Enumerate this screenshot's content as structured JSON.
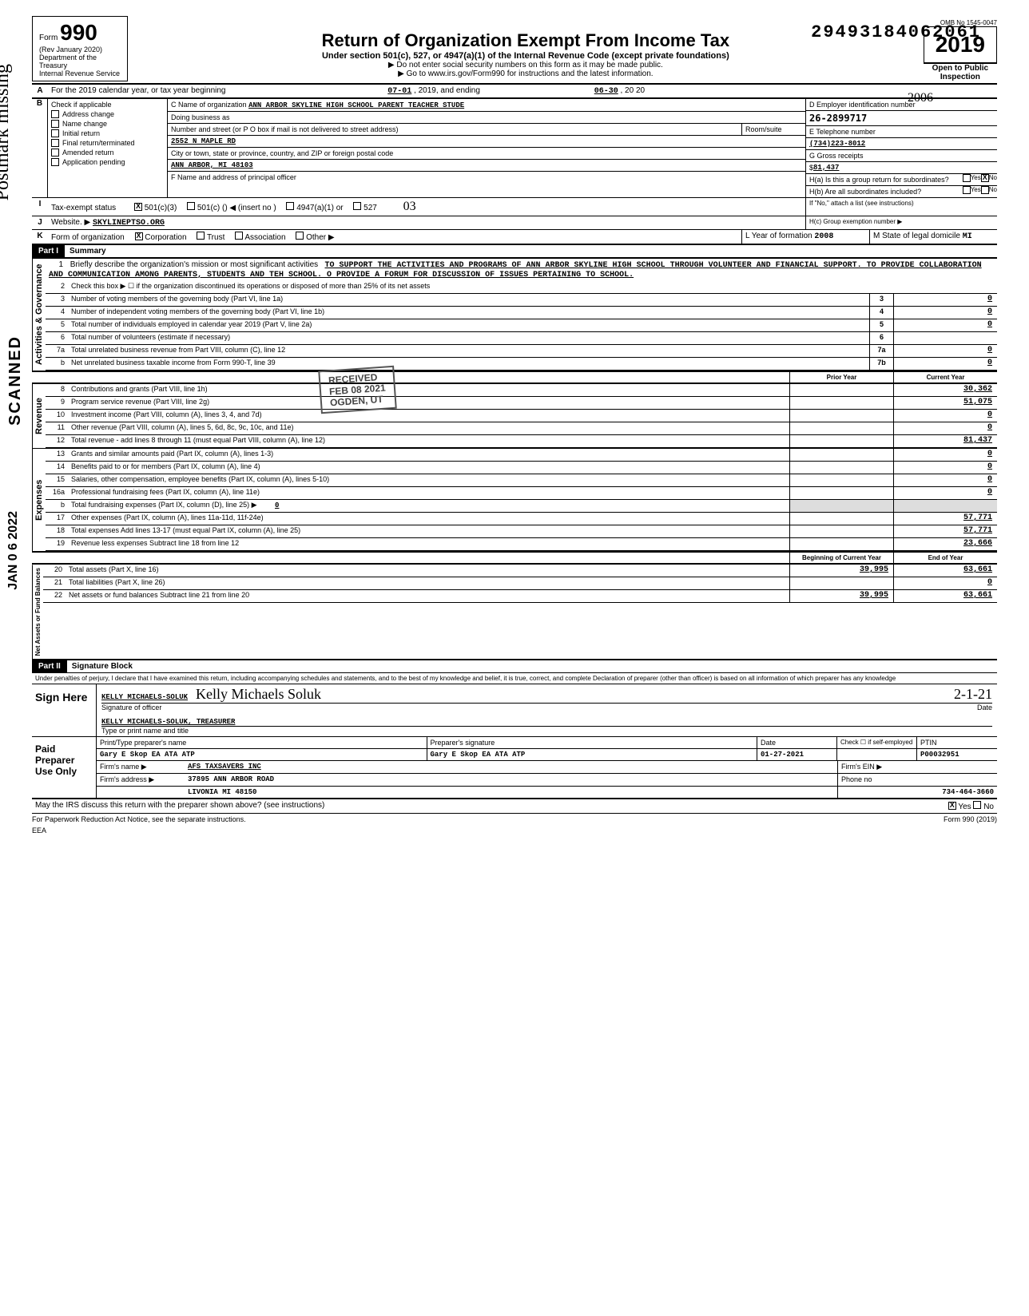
{
  "topnumber": "29493184062061",
  "omb": "OMB No 1545-0047",
  "form": {
    "number": "990",
    "rev": "(Rev January 2020)",
    "dept1": "Department of the Treasury",
    "dept2": "Internal Revenue Service",
    "title": "Return of Organization Exempt From Income Tax",
    "sub1": "Under section 501(c), 527, or 4947(a)(1) of the Internal Revenue Code (except private foundations)",
    "sub2": "▶ Do not enter social security numbers on this form as it may be made public.",
    "sub3": "▶ Go to www.irs.gov/Form990 for instructions and the latest information.",
    "year": "2019",
    "open": "Open to Public",
    "inspection": "Inspection",
    "hand_year": "2006"
  },
  "a": {
    "label": "For the 2019 calendar year, or tax year beginning",
    "begin": "07-01",
    "mid": ", 2019, and ending",
    "end": "06-30",
    "endyr": ", 20 20"
  },
  "b": {
    "hdr": "Check if applicable",
    "items": [
      "Address change",
      "Name change",
      "Initial return",
      "Final return/terminated",
      "Amended return",
      "Application pending"
    ]
  },
  "c": {
    "namelbl": "C  Name of organization",
    "name": "ANN ARBOR SKYLINE HIGH SCHOOL PARENT TEACHER STUDE",
    "dba": "Doing business as",
    "streetlbl": "Number and street (or P O box if mail is not delivered to street address)",
    "street": "2552 N MAPLE RD",
    "room": "Room/suite",
    "citylbl": "City or town, state or province, country, and ZIP or foreign postal code",
    "city": "ANN ARBOR, MI 48103",
    "flbl": "F  Name and address of principal officer"
  },
  "d": {
    "lbl": "D  Employer identification number",
    "val": "26-2899717"
  },
  "e": {
    "lbl": "E  Telephone number",
    "val": "(734)223-8012"
  },
  "g": {
    "lbl": "G  Gross receipts",
    "dollar": "$",
    "val": "81,437"
  },
  "h": {
    "a": "H(a) Is this a group return for subordinates?",
    "b": "H(b) Are all subordinates included?",
    "note": "If \"No,\" attach a list (see instructions)",
    "c": "H(c)  Group exemption number  ▶",
    "yes": "Yes",
    "no": "No",
    "hand03": "03"
  },
  "i": {
    "lbl": "Tax-exempt status",
    "opts": [
      "501(c)(3)",
      "501(c) (",
      "4947(a)(1) or",
      "527"
    ],
    "insert": ") ◀ (insert no )"
  },
  "j": {
    "lbl": "Website. ▶",
    "val": "SKYLINEPTSO.ORG"
  },
  "k": {
    "lbl": "Form of organization",
    "opts": [
      "Corporation",
      "Trust",
      "Association",
      "Other ▶"
    ]
  },
  "l": {
    "lbl": "L  Year of formation",
    "val": "2008"
  },
  "m": {
    "lbl": "M  State of legal domicile",
    "val": "MI"
  },
  "part1": {
    "hdr": "Part I",
    "title": "Summary"
  },
  "mission": {
    "num": "1",
    "lbl": "Briefly describe the organization's mission or most significant activities",
    "text": "TO SUPPORT THE ACTIVITIES AND PROGRAMS OF ANN ARBOR SKYLINE HIGH SCHOOL THROUGH VOLUNTEER AND FINANCIAL SUPPORT. TO PROVIDE COLLABORATION AND COMMUNICATION AMONG PARENTS, STUDENTS AND TEH SCHOOL. O PROVIDE A FORUM FOR DISCUSSION OF ISSUES PERTAINING TO SCHOOL."
  },
  "gov": {
    "label": "Activities & Governance",
    "lines": [
      {
        "n": "2",
        "d": "Check this box ▶ ☐ if the organization discontinued its operations or disposed of more than 25% of its net assets"
      },
      {
        "n": "3",
        "d": "Number of voting members of the governing body (Part VI, line 1a)",
        "box": "3",
        "v": "0"
      },
      {
        "n": "4",
        "d": "Number of independent voting members of the governing body (Part VI, line 1b)",
        "box": "4",
        "v": "0"
      },
      {
        "n": "5",
        "d": "Total number of individuals employed in calendar year 2019 (Part V, line 2a)",
        "box": "5",
        "v": "0"
      },
      {
        "n": "6",
        "d": "Total number of volunteers (estimate if necessary)",
        "box": "6",
        "v": ""
      },
      {
        "n": "7a",
        "d": "Total unrelated business revenue from Part VIII, column (C), line 12",
        "box": "7a",
        "v": "0"
      },
      {
        "n": "b",
        "d": "Net unrelated business taxable income from Form 990-T, line 39",
        "box": "7b",
        "v": "0"
      }
    ]
  },
  "colhdr": {
    "prior": "Prior Year",
    "current": "Current Year",
    "boy": "Beginning of Current Year",
    "eoy": "End of Year"
  },
  "rev": {
    "label": "Revenue",
    "lines": [
      {
        "n": "8",
        "d": "Contributions and grants (Part VIII, line 1h)",
        "v": "30,362"
      },
      {
        "n": "9",
        "d": "Program service revenue (Part VIII, line 2g)",
        "v": "51,075"
      },
      {
        "n": "10",
        "d": "Investment income (Part VIII, column (A), lines 3, 4, and 7d)",
        "v": "0"
      },
      {
        "n": "11",
        "d": "Other revenue (Part VIII, column (A), lines 5, 6d, 8c, 9c, 10c, and 11e)",
        "v": "0"
      },
      {
        "n": "12",
        "d": "Total revenue - add lines 8 through 11 (must equal Part VIII, column (A), line 12)",
        "v": "81,437"
      }
    ]
  },
  "exp": {
    "label": "Expenses",
    "lines": [
      {
        "n": "13",
        "d": "Grants and similar amounts paid (Part IX, column (A), lines 1-3)",
        "v": "0"
      },
      {
        "n": "14",
        "d": "Benefits paid to or for members (Part IX, column (A), line 4)",
        "v": "0"
      },
      {
        "n": "15",
        "d": "Salaries, other compensation, employee benefits (Part IX, column (A), lines 5-10)",
        "v": "0"
      },
      {
        "n": "16a",
        "d": "Professional fundraising fees (Part IX, column (A), line 11e)",
        "v": "0"
      },
      {
        "n": "b",
        "d": "Total fundraising expenses (Part IX, column (D), line 25)     ▶",
        "inline": "0"
      },
      {
        "n": "17",
        "d": "Other expenses (Part IX, column (A), lines 11a-11d, 11f-24e)",
        "v": "57,771"
      },
      {
        "n": "18",
        "d": "Total expenses  Add lines 13-17 (must equal Part IX, column (A), line 25)",
        "v": "57,771"
      },
      {
        "n": "19",
        "d": "Revenue less expenses  Subtract line 18 from line 12",
        "v": "23,666"
      }
    ]
  },
  "net": {
    "label": "Net Assets or Fund Balances",
    "lines": [
      {
        "n": "20",
        "d": "Total assets (Part X, line 16)",
        "p": "39,995",
        "v": "63,661"
      },
      {
        "n": "21",
        "d": "Total liabilities (Part X, line 26)",
        "p": "",
        "v": "0"
      },
      {
        "n": "22",
        "d": "Net assets or fund balances  Subtract line 21 from line 20",
        "p": "39,995",
        "v": "63,661"
      }
    ]
  },
  "part2": {
    "hdr": "Part II",
    "title": "Signature Block"
  },
  "penalty": "Under penalties of perjury, I declare that I have examined this return, including accompanying schedules and statements, and to the best of my knowledge and belief, it is true, correct, and complete  Declaration of preparer (other than officer) is based on all information of which preparer has any knowledge",
  "sign": {
    "here": "Sign Here",
    "officer": "KELLY MICHAELS-SOLUK",
    "siglbl": "Signature of officer",
    "sigscript": "Kelly Michaels Soluk",
    "date": "2-1-21",
    "datelbl": "Date",
    "typed": "KELLY MICHAELS-SOLUK, TREASURER",
    "typedlbl": "Type or print name and title"
  },
  "paid": {
    "label": "Paid Preparer Use Only",
    "hdr": [
      "Print/Type preparer's name",
      "Preparer's signature",
      "Date",
      "Check ☐ if self-employed",
      "PTIN"
    ],
    "name": "Gary E Skop    EA  ATA  ATP",
    "sig": "Gary E Skop    EA  ATA  ATP",
    "date": "01-27-2021",
    "ptin": "P00032951",
    "firmlbl": "Firm's name  ▶",
    "firm": "AFS TAXSAVERS INC",
    "einlbl": "Firm's EIN ▶",
    "addrlbl": "Firm's address ▶",
    "addr1": "37895 ANN ARBOR ROAD",
    "addr2": "LIVONIA MI 48150",
    "phonelbl": "Phone no",
    "phone": "734-464-3660"
  },
  "discuss": "May the IRS discuss this return with the preparer shown above? (see instructions)",
  "discuss_yes": "Yes",
  "discuss_no": "No",
  "footer": {
    "left": "For Paperwork Reduction Act Notice, see the separate instructions.",
    "eea": "EEA",
    "right": "Form 990 (2019)"
  },
  "received": {
    "text": "RECEIVED",
    "date": "FEB 08 2021",
    "loc": "OGDEN, UT"
  },
  "sidestamps": {
    "scanned": "SCANNED",
    "date": "JAN 0 6 2022",
    "hand": "Postmark missing"
  }
}
